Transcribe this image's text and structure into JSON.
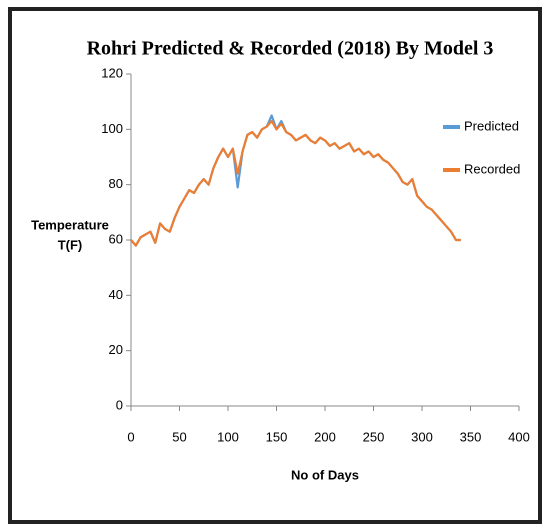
{
  "chart_data": {
    "type": "line",
    "title": "Rohri Predicted & Recorded (2018) By Model 3",
    "xlabel": "No of Days",
    "ylabel": [
      "Temperature",
      "T(F)"
    ],
    "x": [
      0,
      5,
      10,
      15,
      20,
      25,
      30,
      35,
      40,
      45,
      50,
      55,
      60,
      65,
      70,
      75,
      80,
      85,
      90,
      95,
      100,
      105,
      110,
      115,
      120,
      125,
      130,
      135,
      140,
      145,
      150,
      155,
      160,
      165,
      170,
      175,
      180,
      185,
      190,
      195,
      200,
      205,
      210,
      215,
      220,
      225,
      230,
      235,
      240,
      245,
      250,
      255,
      260,
      265,
      270,
      275,
      280,
      285,
      290,
      295,
      300,
      305,
      310,
      315,
      320,
      325,
      330,
      335,
      340
    ],
    "series": [
      {
        "name": "Predicted",
        "color": "#5b9bd5",
        "values": [
          60,
          58,
          61,
          62,
          63,
          59,
          66,
          64,
          63,
          68,
          72,
          75,
          78,
          77,
          80,
          82,
          80,
          86,
          90,
          93,
          90,
          93,
          79,
          92,
          98,
          99,
          97,
          100,
          101,
          105,
          100,
          103,
          99,
          98,
          96,
          97,
          98,
          96,
          95,
          97,
          96,
          94,
          95,
          93,
          94,
          95,
          92,
          93,
          91,
          92,
          90,
          91,
          89,
          88,
          86,
          84,
          81,
          80,
          82,
          76,
          74,
          72,
          71,
          69,
          67,
          65,
          63,
          60,
          60
        ]
      },
      {
        "name": "Recorded",
        "color": "#ed7d31",
        "values": [
          60,
          58,
          61,
          62,
          63,
          59,
          66,
          64,
          63,
          68,
          72,
          75,
          78,
          77,
          80,
          82,
          80,
          86,
          90,
          93,
          90,
          93,
          84,
          92,
          98,
          99,
          97,
          100,
          101,
          103,
          100,
          102,
          99,
          98,
          96,
          97,
          98,
          96,
          95,
          97,
          96,
          94,
          95,
          93,
          94,
          95,
          92,
          93,
          91,
          92,
          90,
          91,
          89,
          88,
          86,
          84,
          81,
          80,
          82,
          76,
          74,
          72,
          71,
          69,
          67,
          65,
          63,
          60,
          60
        ]
      }
    ],
    "xlim": [
      0,
      400
    ],
    "xticks": [
      0,
      50,
      100,
      150,
      200,
      250,
      300,
      350,
      400
    ],
    "ylim": [
      0,
      120
    ],
    "yticks": [
      0,
      20,
      40,
      60,
      80,
      100,
      120
    ]
  }
}
